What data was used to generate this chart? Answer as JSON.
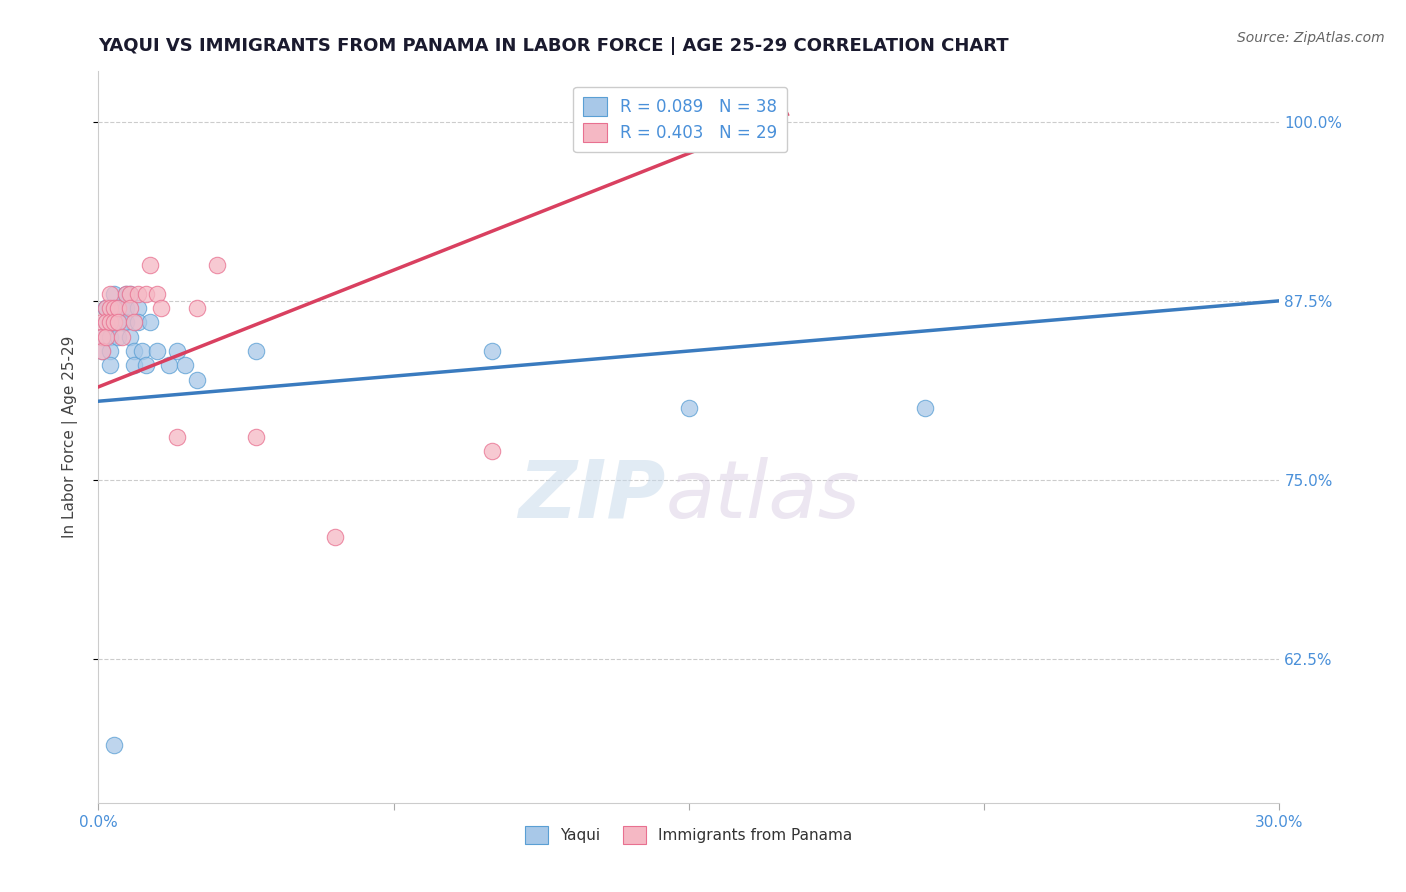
{
  "title": "YAQUI VS IMMIGRANTS FROM PANAMA IN LABOR FORCE | AGE 25-29 CORRELATION CHART",
  "source": "Source: ZipAtlas.com",
  "ylabel": "In Labor Force | Age 25-29",
  "x_min": 0.0,
  "x_max": 0.3,
  "y_min": 0.525,
  "y_max": 1.035,
  "yticks": [
    0.625,
    0.75,
    0.875,
    1.0
  ],
  "ytick_labels": [
    "62.5%",
    "75.0%",
    "87.5%",
    "100.0%"
  ],
  "xticks": [
    0.0,
    0.075,
    0.15,
    0.225,
    0.3
  ],
  "xtick_labels": [
    "0.0%",
    "",
    "",
    "",
    "30.0%"
  ],
  "legend_r_labels": [
    "R = 0.089   N = 38",
    "R = 0.403   N = 29"
  ],
  "watermark_zip": "ZIP",
  "watermark_atlas": "atlas",
  "blue_scatter_color": "#a8c8e8",
  "pink_scatter_color": "#f5b8c4",
  "blue_edge_color": "#5a9fd4",
  "pink_edge_color": "#e87090",
  "blue_line_color": "#3a7bbf",
  "pink_line_color": "#d94060",
  "tick_color": "#4a90d9",
  "yaqui_x": [
    0.001,
    0.001,
    0.002,
    0.002,
    0.002,
    0.003,
    0.003,
    0.003,
    0.003,
    0.004,
    0.004,
    0.005,
    0.005,
    0.005,
    0.006,
    0.006,
    0.007,
    0.007,
    0.007,
    0.008,
    0.008,
    0.009,
    0.009,
    0.01,
    0.01,
    0.011,
    0.012,
    0.013,
    0.015,
    0.018,
    0.02,
    0.022,
    0.025,
    0.04,
    0.1,
    0.15,
    0.21,
    0.004
  ],
  "yaqui_y": [
    0.84,
    0.85,
    0.87,
    0.87,
    0.86,
    0.86,
    0.85,
    0.84,
    0.83,
    0.88,
    0.87,
    0.87,
    0.86,
    0.85,
    0.87,
    0.86,
    0.88,
    0.87,
    0.86,
    0.88,
    0.85,
    0.84,
    0.83,
    0.87,
    0.86,
    0.84,
    0.83,
    0.86,
    0.84,
    0.83,
    0.84,
    0.83,
    0.82,
    0.84,
    0.84,
    0.8,
    0.8,
    0.565
  ],
  "panama_x": [
    0.001,
    0.001,
    0.001,
    0.002,
    0.002,
    0.002,
    0.003,
    0.003,
    0.003,
    0.004,
    0.004,
    0.005,
    0.005,
    0.006,
    0.007,
    0.008,
    0.008,
    0.009,
    0.01,
    0.012,
    0.013,
    0.015,
    0.016,
    0.02,
    0.025,
    0.03,
    0.04,
    0.06,
    0.1
  ],
  "panama_y": [
    0.86,
    0.85,
    0.84,
    0.87,
    0.86,
    0.85,
    0.88,
    0.87,
    0.86,
    0.87,
    0.86,
    0.87,
    0.86,
    0.85,
    0.88,
    0.88,
    0.87,
    0.86,
    0.88,
    0.88,
    0.9,
    0.88,
    0.87,
    0.78,
    0.87,
    0.9,
    0.78,
    0.71,
    0.77
  ],
  "blue_trend_x": [
    0.0,
    0.3
  ],
  "blue_trend_y": [
    0.805,
    0.875
  ],
  "pink_trend_x": [
    0.0,
    0.175
  ],
  "pink_trend_y": [
    0.815,
    1.005
  ]
}
